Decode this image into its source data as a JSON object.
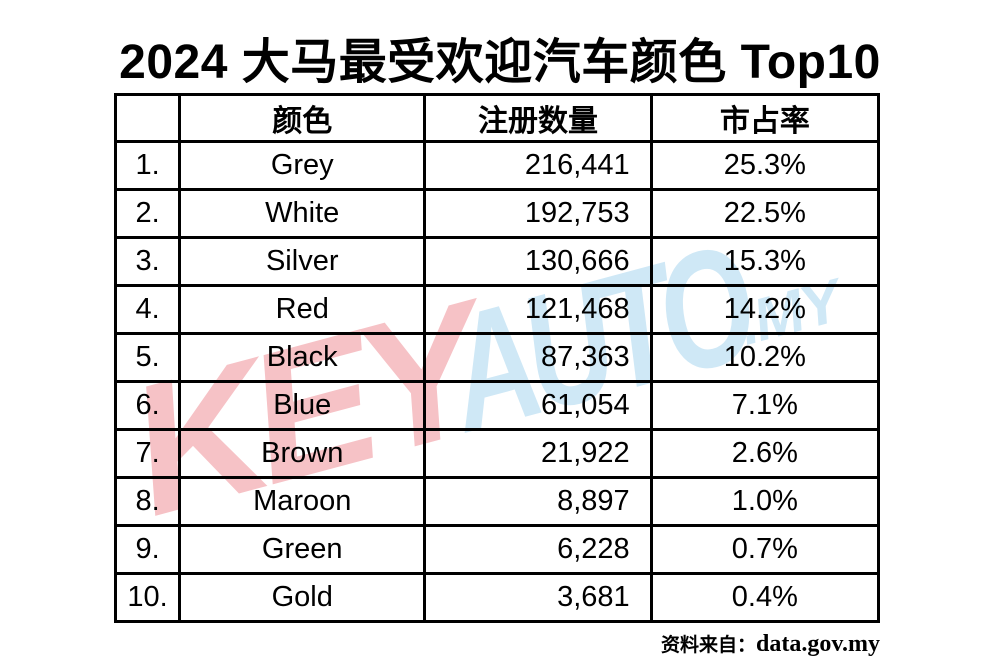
{
  "title": "2024 大马最受欢迎汽车颜色 Top10",
  "table": {
    "headers": {
      "rank": "",
      "color": "颜色",
      "registrations": "注册数量",
      "share": "市占率"
    },
    "rows": [
      {
        "rank": "1.",
        "color": "Grey",
        "registrations": "216,441",
        "share": "25.3%"
      },
      {
        "rank": "2.",
        "color": "White",
        "registrations": "192,753",
        "share": "22.5%"
      },
      {
        "rank": "3.",
        "color": "Silver",
        "registrations": "130,666",
        "share": "15.3%"
      },
      {
        "rank": "4.",
        "color": "Red",
        "registrations": "121,468",
        "share": "14.2%"
      },
      {
        "rank": "5.",
        "color": "Black",
        "registrations": "87,363",
        "share": "10.2%"
      },
      {
        "rank": "6.",
        "color": "Blue",
        "registrations": "61,054",
        "share": "7.1%"
      },
      {
        "rank": "7.",
        "color": "Brown",
        "registrations": "21,922",
        "share": "2.6%"
      },
      {
        "rank": "8.",
        "color": "Maroon",
        "registrations": "8,897",
        "share": "1.0%"
      },
      {
        "rank": "9.",
        "color": "Green",
        "registrations": "6,228",
        "share": "0.7%"
      },
      {
        "rank": "10.",
        "color": "Gold",
        "registrations": "3,681",
        "share": "0.4%"
      }
    ]
  },
  "watermark": {
    "key": "KEY",
    "auto": "AUTO",
    "suffix": ".MY"
  },
  "source": {
    "label": "资料来自：",
    "value": "data.gov.my"
  },
  "colors": {
    "watermark_pink": "#f6c2c6",
    "watermark_blue": "#cfe8f6",
    "border": "#000000",
    "text": "#000000",
    "background": "#ffffff"
  },
  "chart_data": {
    "type": "table",
    "title": "2024 大马最受欢迎汽车颜色 Top10",
    "columns": [
      "",
      "颜色",
      "注册数量",
      "市占率"
    ],
    "categories": [
      "Grey",
      "White",
      "Silver",
      "Red",
      "Black",
      "Blue",
      "Brown",
      "Maroon",
      "Green",
      "Gold"
    ],
    "series": [
      {
        "name": "注册数量",
        "values": [
          216441,
          192753,
          130666,
          121468,
          87363,
          61054,
          21922,
          8897,
          6228,
          3681
        ]
      },
      {
        "name": "市占率(%)",
        "values": [
          25.3,
          22.5,
          15.3,
          14.2,
          10.2,
          7.1,
          2.6,
          1.0,
          0.7,
          0.4
        ]
      }
    ],
    "source": "data.gov.my",
    "legend_position": "none",
    "grid": true
  }
}
